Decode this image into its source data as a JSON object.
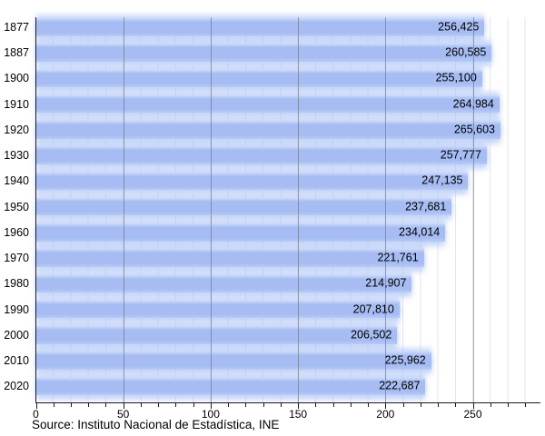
{
  "chart_data": {
    "type": "bar",
    "orientation": "horizontal",
    "title": "",
    "categories": [
      "1877",
      "1887",
      "1900",
      "1910",
      "1920",
      "1930",
      "1940",
      "1950",
      "1960",
      "1970",
      "1980",
      "1990",
      "2000",
      "2010",
      "2020"
    ],
    "values": [
      256425,
      260585,
      255100,
      264984,
      265603,
      257777,
      247135,
      237681,
      234014,
      221761,
      214907,
      207810,
      206502,
      225962,
      222687
    ],
    "value_labels": [
      "256,425",
      "260,585",
      "255,100",
      "264,984",
      "265,603",
      "257,777",
      "247,135",
      "237,681",
      "234,014",
      "221,761",
      "214,907",
      "207,810",
      "206,502",
      "225,962",
      "222,687"
    ],
    "x_ticks": [
      0,
      50,
      100,
      150,
      200,
      250
    ],
    "x_tick_labels": [
      "0",
      "50",
      "100",
      "150",
      "200",
      "250"
    ],
    "xlim": [
      0,
      285
    ],
    "x_axis_unit": "thousands",
    "grid": {
      "minor_step": 10,
      "major_step": 50,
      "visible": true
    },
    "legend": {
      "visible": false
    },
    "bar_color": "#a6bcf2",
    "bar_highlight_color": "#ccd9fa",
    "grid_major_color": "#a0a0a5",
    "grid_minor_color": "#e6e6e9",
    "axis_color": "#1a1a1a",
    "label_color": "#000000",
    "source": "Source: Instituto Nacional de Estadística, INE"
  }
}
